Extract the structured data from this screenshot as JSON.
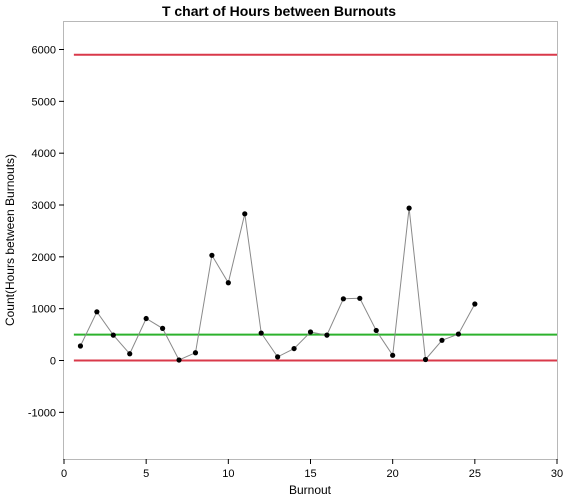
{
  "chart_data": {
    "type": "line",
    "title": "T chart of Hours between Burnouts",
    "xlabel": "Burnout",
    "ylabel": "Count(Hours between Burnouts)",
    "xlim": [
      0,
      30
    ],
    "ylim": [
      -1900,
      6550
    ],
    "x_ticks": [
      0,
      5,
      10,
      15,
      20,
      25,
      30
    ],
    "y_ticks": [
      -1000,
      0,
      1000,
      2000,
      3000,
      4000,
      5000,
      6000
    ],
    "grid": false,
    "legend": "none",
    "series": [
      {
        "x": [
          1,
          2,
          3,
          4,
          5,
          6,
          7,
          8,
          9,
          10,
          11,
          12,
          13,
          14,
          15,
          16,
          17,
          18,
          19,
          20,
          21,
          22,
          23,
          24,
          25
        ],
        "y": [
          280,
          940,
          490,
          130,
          810,
          620,
          10,
          150,
          2030,
          1500,
          2830,
          530,
          70,
          230,
          550,
          490,
          1190,
          1200,
          580,
          100,
          2940,
          20,
          390,
          510,
          1090
        ]
      }
    ],
    "control_limits": {
      "ucl": 5900,
      "center": 500,
      "lcl": 0,
      "x_range": [
        0.6,
        30
      ]
    },
    "colors": {
      "limit": "#d9394a",
      "center": "#2db22d",
      "series_line": "#8a8a8a",
      "marker": "#000000"
    }
  }
}
